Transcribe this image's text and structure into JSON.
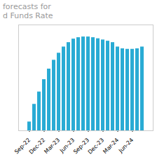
{
  "chart_data": {
    "type": "bar",
    "title": "forecasts for",
    "subtitle": "d Funds Rate",
    "categories": [
      "Sep-22",
      null,
      null,
      "Dec-22",
      null,
      null,
      "Mar-23",
      null,
      null,
      "Jun-23",
      null,
      null,
      "Sep-23",
      null,
      null,
      "Dec-23",
      null,
      null,
      "Mar-24",
      null,
      null,
      "Jun-24",
      null,
      null
    ],
    "values": [
      0.5,
      1.5,
      2.2,
      2.9,
      3.5,
      4.0,
      4.4,
      4.75,
      5.0,
      5.2,
      5.28,
      5.32,
      5.32,
      5.28,
      5.22,
      5.15,
      5.08,
      5.0,
      4.75,
      4.65,
      4.62,
      4.62,
      4.65,
      4.75
    ],
    "color": "#29ABD4",
    "ylim": [
      0,
      6.0
    ],
    "grid": false,
    "tick_labels": "x"
  }
}
